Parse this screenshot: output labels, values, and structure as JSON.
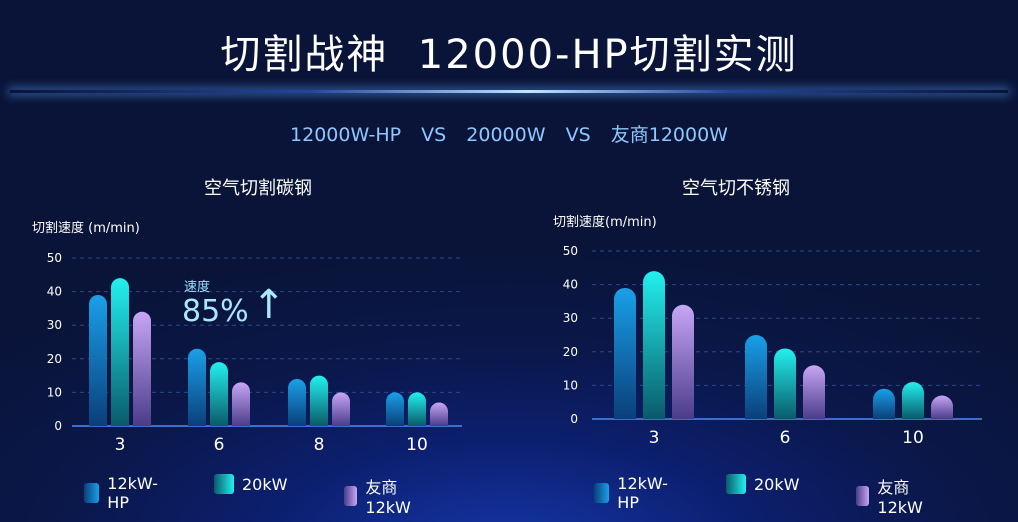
{
  "header": {
    "title": "切割战神  12000-HP切割实测",
    "subtitle": "12000W-HP  VS  20000W  VS  友商12000W"
  },
  "colors": {
    "series1": [
      "#1aa0e8",
      "#0a3f7a"
    ],
    "series2": [
      "#22f0ee",
      "#0a5a6a"
    ],
    "series3": [
      "#c7a6f5",
      "#4a3c8a"
    ],
    "axis": "#3a6fd0",
    "grid": "#2a4a8a"
  },
  "annotation": {
    "label": "速度",
    "value": "85%",
    "arrow": "↑"
  },
  "chart_data": [
    {
      "type": "bar",
      "title": "空气切割碳钢",
      "ylabel": "切割速度 (m/min)",
      "ylim": [
        0,
        50
      ],
      "yticks": [
        "0",
        "10",
        "20",
        "30",
        "40",
        "50"
      ],
      "categories": [
        "3",
        "6",
        "8",
        "10"
      ],
      "series": [
        {
          "name": "12kW-HP",
          "values": [
            39,
            23,
            14,
            10
          ]
        },
        {
          "name": "20kW",
          "values": [
            44,
            19,
            15,
            10
          ]
        },
        {
          "name": "友商12kW",
          "values": [
            34,
            13,
            10,
            7
          ]
        }
      ],
      "grid": true,
      "legend": "bottom"
    },
    {
      "type": "bar",
      "title": "空气切不锈钢",
      "ylabel": "切割速度(m/min)",
      "ylim": [
        0,
        50
      ],
      "yticks": [
        "0",
        "10",
        "20",
        "30",
        "40",
        "50"
      ],
      "categories": [
        "3",
        "6",
        "10"
      ],
      "series": [
        {
          "name": "12kW-HP",
          "values": [
            39,
            25,
            9
          ]
        },
        {
          "name": "20kW",
          "values": [
            44,
            21,
            11
          ]
        },
        {
          "name": "友商12kW",
          "values": [
            34,
            16,
            7
          ]
        }
      ],
      "grid": true,
      "legend": "bottom"
    }
  ]
}
